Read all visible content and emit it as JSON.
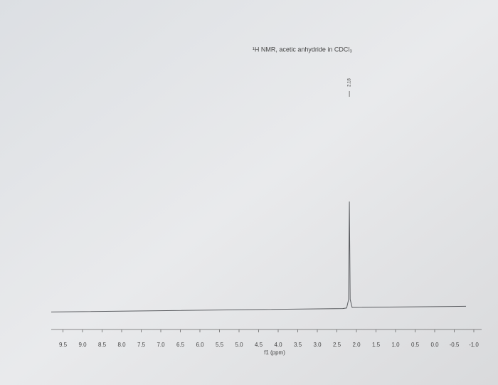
{
  "chart_data": {
    "type": "line",
    "title": "¹H NMR, acetic anhydride in CDCl₃",
    "xlabel": "f1 (ppm)",
    "annotation": {
      "x": 2.18,
      "label": "2.18"
    },
    "x": [
      9.8,
      2.35,
      2.25,
      2.2,
      2.18,
      2.16,
      2.11,
      2.0,
      -0.8
    ],
    "series": [
      {
        "color": "#5a5c60",
        "values": [
          1,
          4,
          4.5,
          12,
          98,
          12,
          5,
          5,
          6
        ]
      }
    ],
    "xlim": [
      9.8,
      -1.2
    ],
    "ylim": [
      0,
      100
    ],
    "xticks": [
      9.5,
      {
        "value": 9,
        "label": "9.0"
      },
      8.5,
      {
        "value": 8,
        "label": "8.0"
      },
      7.5,
      {
        "value": 7,
        "label": "7.0"
      },
      6.5,
      {
        "value": 6,
        "label": "6.0"
      },
      5.5,
      {
        "value": 5,
        "label": "5.0"
      },
      4.5,
      {
        "value": 4,
        "label": "4.0"
      },
      3.5,
      {
        "value": 3,
        "label": "3.0"
      },
      2.5,
      {
        "value": 2,
        "label": "2.0"
      },
      1.5,
      {
        "value": 1,
        "label": "1.0"
      },
      0.5,
      {
        "value": 0,
        "label": "0.0"
      },
      -0.5,
      {
        "value": -1,
        "label": "-1.0"
      }
    ]
  }
}
